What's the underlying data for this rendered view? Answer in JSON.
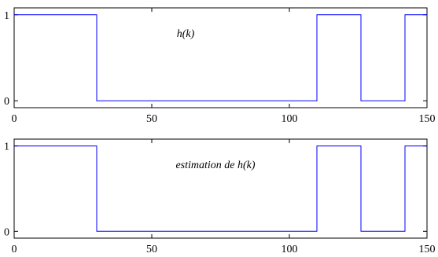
{
  "chart_data": [
    {
      "type": "line",
      "title": "",
      "xlabel": "",
      "ylabel": "",
      "xlim": [
        0,
        150
      ],
      "ylim": [
        -0.08,
        1.08
      ],
      "xticks": [
        "0",
        "50",
        "100",
        "150"
      ],
      "yticks": [
        "0",
        "1"
      ],
      "annotation": "h(k)",
      "step": "post",
      "series": [
        {
          "color": "#0000ff",
          "x": [
            0,
            30,
            110,
            126,
            142,
            150
          ],
          "y": [
            1,
            0,
            1,
            0,
            1,
            1
          ]
        }
      ],
      "grid": false,
      "legend": "none"
    },
    {
      "type": "line",
      "title": "",
      "xlabel": "",
      "ylabel": "",
      "xlim": [
        0,
        150
      ],
      "ylim": [
        -0.08,
        1.08
      ],
      "xticks": [
        "0",
        "50",
        "100",
        "150"
      ],
      "yticks": [
        "0",
        "1"
      ],
      "annotation": "estimation de h(k)",
      "step": "post",
      "series": [
        {
          "color": "#0000ff",
          "x": [
            0,
            30,
            110,
            126,
            142,
            150
          ],
          "y": [
            1,
            0,
            1,
            0,
            1,
            1
          ]
        }
      ],
      "grid": false,
      "legend": "none"
    }
  ]
}
